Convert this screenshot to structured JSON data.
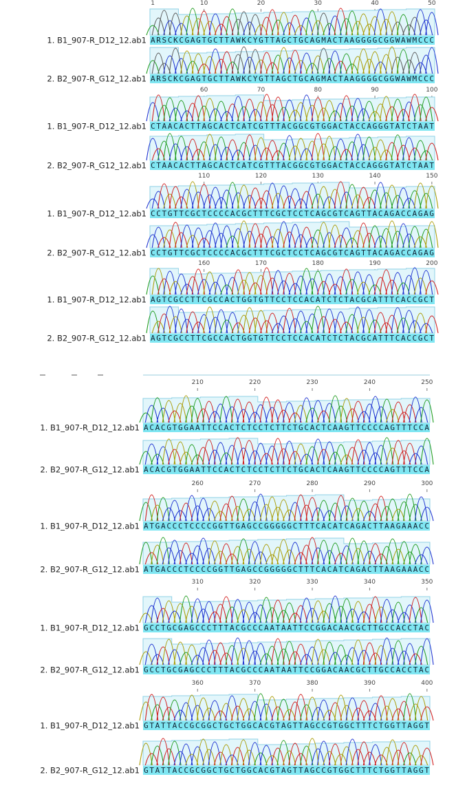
{
  "blocks": [
    {
      "ticks": [
        "1",
        "10",
        "20",
        "30",
        "40",
        "50"
      ],
      "rows": [
        {
          "label": "1. B1_907-R_D12_12.ab1",
          "sequence": "ARSCKCGAGTGCTTAWKCYGTTAGCTGCAGMACTAAGGGGCGGWAWMCCC"
        },
        {
          "label": "2. B2_907-R_G12_12.ab1",
          "sequence": "ARSCKCGAGTGCTTAWKCYGTTAGCTGCAGMACTAAGGGGCGGWAWMCCC"
        }
      ]
    },
    {
      "ticks": [
        "60",
        "70",
        "80",
        "90",
        "100"
      ],
      "rows": [
        {
          "label": "1. B1_907-R_D12_12.ab1",
          "sequence": "CTAACACTTAGCACTCATCGTTTACGGCGTGGACTACCAGGGTATCTAAT"
        },
        {
          "label": "2. B2_907-R_G12_12.ab1",
          "sequence": "CTAACACTTAGCACTCATCGTTTACGGCGTGGACTACCAGGGTATCTAAT"
        }
      ]
    },
    {
      "ticks": [
        "110",
        "120",
        "130",
        "140",
        "150"
      ],
      "rows": [
        {
          "label": "1. B1_907-R_D12_12.ab1",
          "sequence": "CCTGTTCGCTCCCCACGCTTTCGCTCCTCAGCGTCAGTTACAGACCAGAG"
        },
        {
          "label": "2. B2_907-R_G12_12.ab1",
          "sequence": "CCTGTTCGCTCCCCACGCTTTCGCTCCTCAGCGTCAGTTACAGACCAGAG"
        }
      ]
    },
    {
      "ticks": [
        "160",
        "170",
        "180",
        "190",
        "200"
      ],
      "rows": [
        {
          "label": "1. B1_907-R_D12_12.ab1",
          "sequence": "AGTCGCCTTCGCCACTGGTGTTCCTCCACATCTCTACGCATTTCACCGCT"
        },
        {
          "label": "2. B2_907-R_G12_12.ab1",
          "sequence": "AGTCGCCTTCGCCACTGGTGTTCCTCCACATCTCTACGCATTTCACCGCT"
        }
      ]
    },
    {
      "ticks": [
        "210",
        "220",
        "230",
        "240",
        "250"
      ],
      "rows": [
        {
          "label": "1. B1_907-R_D12_12.ab1",
          "sequence": "ACACGTGGAATTCCACTCTCCTCTTCTGCACTCAAGTTCCCCAGTTTCCA"
        },
        {
          "label": "2. B2_907-R_G12_12.ab1",
          "sequence": "ACACGTGGAATTCCACTCTCCTCTTCTGCACTCAAGTTCCCCAGTTTCCA"
        }
      ]
    },
    {
      "ticks": [
        "260",
        "270",
        "280",
        "290",
        "300"
      ],
      "rows": [
        {
          "label": "1. B1_907-R_D12_12.ab1",
          "sequence": "ATGACCCTCCCCGGTTGAGCCGGGGGCTTTCACATCAGACTTAAGAAACC"
        },
        {
          "label": "2. B2_907-R_G12_12.ab1",
          "sequence": "ATGACCCTCCCCGGTTGAGCCGGGGGCTTTCACATCAGACTTAAGAAACC"
        }
      ]
    },
    {
      "ticks": [
        "310",
        "320",
        "330",
        "340",
        "350"
      ],
      "rows": [
        {
          "label": "1. B1_907-R_D12_12.ab1",
          "sequence": "GCCTGCGAGCCCTTTACGCCCAATAATTCCGGACAACGCTTGCCACCTAC"
        },
        {
          "label": "2. B2_907-R_G12_12.ab1",
          "sequence": "GCCTGCGAGCCCTTTACGCCCAATAATTCCGGACAACGCTTGCCACCTAC"
        }
      ]
    },
    {
      "ticks": [
        "360",
        "370",
        "380",
        "390",
        "400"
      ],
      "rows": [
        {
          "label": "1. B1_907-R_D12_12.ab1",
          "sequence": "GTATTACCGCGGCTGCTGGCACGTAGTTAGCCGTGGCTTTCTGGTTAGGT"
        },
        {
          "label": "2. B2_907-R_G12_12.ab1",
          "sequence": "GTATTACCGCGGCTGCTGGCACGTAGTTAGCCGTGGCTTTCTGGTTAGGT"
        }
      ]
    }
  ]
}
